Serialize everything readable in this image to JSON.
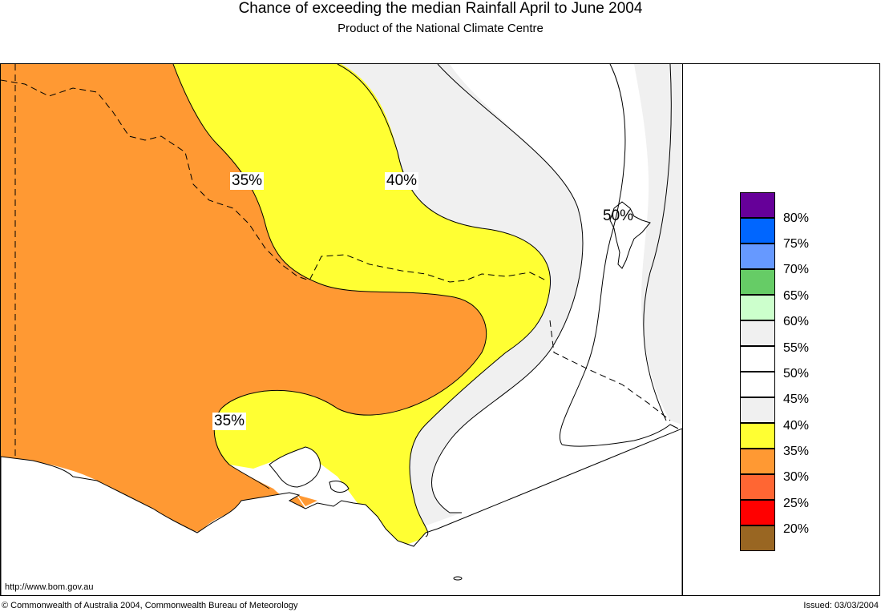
{
  "title": "Chance of exceeding the median Rainfall April to June 2004",
  "subtitle": "Product of the National Climate Centre",
  "map": {
    "labels": [
      {
        "text": "35%"
      },
      {
        "text": "40%"
      },
      {
        "text": "50%"
      },
      {
        "text": "35%"
      }
    ],
    "url": "http://www.bom.gov.au"
  },
  "legend": {
    "items": [
      {
        "label": "80%",
        "color": "#660099"
      },
      {
        "label": "75%",
        "color": "#0066ff"
      },
      {
        "label": "70%",
        "color": "#6699ff"
      },
      {
        "label": "65%",
        "color": "#66cc66"
      },
      {
        "label": "60%",
        "color": "#ccffcc"
      },
      {
        "label": "55%",
        "color": "#f0f0f0"
      },
      {
        "label": "50%",
        "color": "#ffffff"
      },
      {
        "label": "45%",
        "color": "#ffffff"
      },
      {
        "label": "40%",
        "color": "#f0f0f0"
      },
      {
        "label": "35%",
        "color": "#ffff33"
      },
      {
        "label": "30%",
        "color": "#ff9933"
      },
      {
        "label": "25%",
        "color": "#ff6633"
      },
      {
        "label": "20%",
        "color": "#ff0000"
      },
      {
        "label": "",
        "color": "#996622"
      }
    ]
  },
  "footer": {
    "copyright": "© Commonwealth of Australia 2004, Commonwealth Bureau of Meteorology",
    "issued": "Issued: 03/03/2004"
  }
}
